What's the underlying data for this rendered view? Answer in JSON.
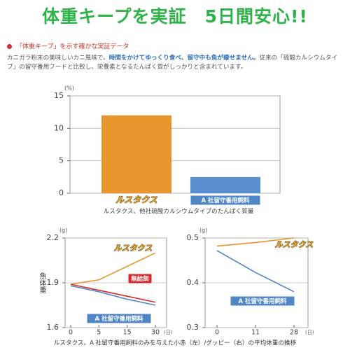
{
  "title": "体重キープを実証　5日間安心!!",
  "heading": "「体重キープ」を示す確かな実証データ",
  "intro": [
    "カニガラ粉末の美味しいカニ風味で、",
    "時間をかけてゆっくり食べ、留守中も魚が痩せません。",
    "従来の「硫酸カルシウムタイプ」の留守番用フードと比較し、栄養素となるたんぱく質がしっかりと含まれています。"
  ],
  "chart_data": [
    {
      "type": "bar",
      "y_unit": "(%)",
      "caption": "ルスタクス、他社硫酸カルシウムタイプのたんぱく質量",
      "categories": [
        "ルスタクス",
        "A 社留守番用飼料"
      ],
      "values": [
        12,
        2.5
      ],
      "colors": [
        "#e8962e",
        "#5b8fcf"
      ],
      "ylim": [
        0,
        15
      ],
      "yticks": [
        0,
        5,
        10,
        15
      ],
      "grid": true
    },
    {
      "type": "line",
      "y_label": "魚体重",
      "y_unit": "(g)",
      "x_unit": "(日)",
      "categories": [
        "0",
        "5",
        "15",
        "30"
      ],
      "series": [
        {
          "name": "ルスタクス",
          "color": "#e8962e",
          "values": [
            1.89,
            1.92,
            2.01,
            2.1
          ]
        },
        {
          "name": "無給餌",
          "color": "#d9272e",
          "values": [
            1.89,
            1.85,
            1.81,
            1.77
          ]
        },
        {
          "name": "A 社留守番用飼料",
          "color": "#4f86c6",
          "values": [
            1.88,
            1.84,
            1.79,
            1.75
          ]
        }
      ],
      "ylim": [
        1.6,
        2.2
      ],
      "yticks": [
        1.6,
        1.9,
        2.2
      ],
      "grid": true
    },
    {
      "type": "line",
      "y_unit": "(g)",
      "x_unit": "(日)",
      "categories": [
        "0",
        "11",
        "28"
      ],
      "series": [
        {
          "name": "ルスタクス",
          "color": "#e8962e",
          "values": [
            0.482,
            0.49,
            0.5
          ]
        },
        {
          "name": "A 社留守番用飼料",
          "color": "#4f86c6",
          "values": [
            0.472,
            0.423,
            0.38
          ]
        }
      ],
      "ylim": [
        0.3,
        0.5
      ],
      "yticks": [
        0.3,
        0.4,
        0.5
      ],
      "grid": true
    }
  ],
  "caption": "ルスタクス、A 社留守番用飼料のみを与えた小赤（左）/グッピー（右）の平均体重の推移"
}
